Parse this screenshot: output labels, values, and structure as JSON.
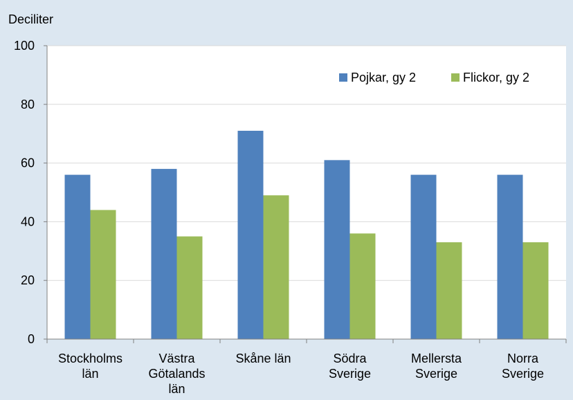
{
  "chart_data": {
    "type": "bar",
    "ylabel": "Deciliter",
    "ylim": [
      0,
      100
    ],
    "yticks": [
      0,
      20,
      40,
      60,
      80,
      100
    ],
    "grid": true,
    "legend_position": "top-right",
    "categories": [
      [
        "Stockholms",
        "län"
      ],
      [
        "Västra",
        "Götalands",
        "län"
      ],
      [
        "Skåne län"
      ],
      [
        "Södra",
        "Sverige"
      ],
      [
        "Mellersta",
        "Sverige"
      ],
      [
        "Norra",
        "Sverige"
      ]
    ],
    "series": [
      {
        "name": "Pojkar, gy 2",
        "color": "#4F81BD",
        "values": [
          56,
          58,
          71,
          61,
          56,
          56
        ]
      },
      {
        "name": "Flickor, gy 2",
        "color": "#9BBB59",
        "values": [
          44,
          35,
          49,
          36,
          33,
          33
        ]
      }
    ],
    "colors": {
      "background": "#DCE7F1",
      "plot_area": "#FFFFFF",
      "gridline": "#D9D9D9",
      "axis": "#808080"
    }
  }
}
